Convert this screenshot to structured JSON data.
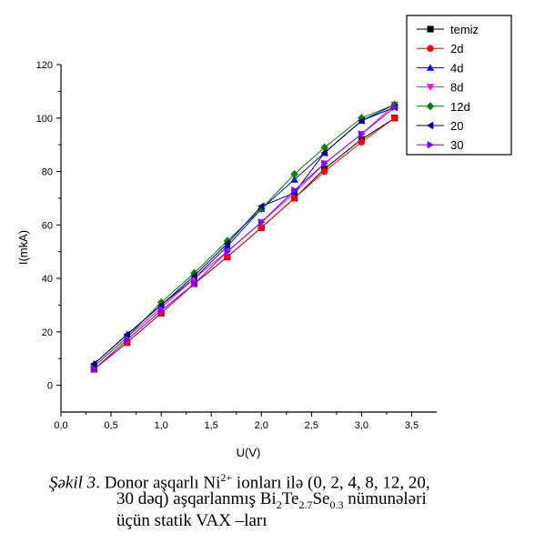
{
  "chart_data": {
    "type": "line",
    "xlabel": "U(V)",
    "ylabel": "I(mkA)",
    "xlim": [
      0.0,
      3.75
    ],
    "ylim": [
      -10,
      120
    ],
    "xticks": [
      "0,0",
      "0,5",
      "1,0",
      "1,5",
      "2,0",
      "2,5",
      "3,0",
      "3,5"
    ],
    "yticks": [
      "0",
      "20",
      "40",
      "60",
      "80",
      "100",
      "120"
    ],
    "x": [
      0.33,
      0.66,
      1.0,
      1.33,
      1.66,
      2.0,
      2.33,
      2.63,
      3.0,
      3.33
    ],
    "legend_position": "top-right",
    "series": [
      {
        "name": "temiz",
        "color": "#000000",
        "marker": "square",
        "values": [
          6,
          16,
          27,
          38,
          48,
          59,
          70,
          81,
          92,
          100
        ]
      },
      {
        "name": "2d",
        "color": "#ff0000",
        "marker": "circle",
        "values": [
          6,
          16,
          27,
          38,
          48,
          59,
          70,
          80,
          91,
          100
        ]
      },
      {
        "name": "4d",
        "color": "#0000ff",
        "marker": "triangle-up",
        "values": [
          8,
          19,
          30,
          40,
          52,
          66,
          77,
          87,
          99,
          105
        ]
      },
      {
        "name": "8d",
        "color": "#ff00ff",
        "marker": "triangle-down",
        "values": [
          7,
          18,
          29,
          40,
          50,
          61,
          72,
          83,
          94,
          105
        ]
      },
      {
        "name": "12d",
        "color": "#008000",
        "marker": "diamond",
        "values": [
          7,
          18,
          31,
          42,
          54,
          66,
          79,
          89,
          100,
          105
        ]
      },
      {
        "name": "20",
        "color": "#000080",
        "marker": "triangle-left",
        "values": [
          8,
          19,
          30,
          41,
          53,
          67,
          72,
          87,
          99,
          104
        ]
      },
      {
        "name": "30",
        "color": "#8000ff",
        "marker": "triangle-right",
        "values": [
          6,
          17,
          28,
          38,
          50,
          61,
          73,
          83,
          94,
          104
        ]
      }
    ]
  },
  "caption": {
    "lead": "Şəkil 3",
    "line1_a": ". Donor aşqarlı Ni",
    "line1_sup": "2+",
    "line1_b": " ionları ilə (0, 2, 4, 8, 12, 20,",
    "line2_a": "30 dəq) aşqarlanmış Bi",
    "line2_sub1": "2",
    "line2_b": "Te",
    "line2_sub2": "2.7",
    "line2_c": "Se",
    "line2_sub3": "0.3",
    "line2_d": " nümunələri",
    "line3": "üçün statik VAX –ları"
  }
}
